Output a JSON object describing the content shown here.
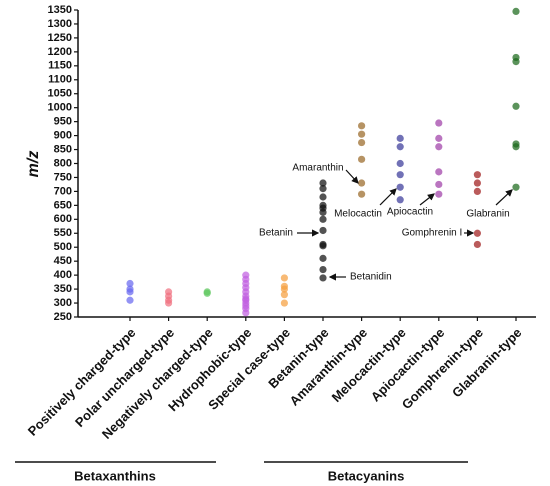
{
  "chart_data": {
    "type": "strip",
    "y_label": "m/z",
    "ylim": [
      250,
      1350
    ],
    "yticks": [
      250,
      300,
      350,
      400,
      450,
      500,
      550,
      600,
      650,
      700,
      750,
      800,
      850,
      900,
      950,
      1000,
      1050,
      1100,
      1150,
      1200,
      1250,
      1300,
      1350
    ],
    "categories": [
      "Positively charged-type",
      "Polar uncharged-type",
      "Negatively charged-type",
      "Hydrophobic-type",
      "Special case-type",
      "Betanin-type",
      "Amaranthin-type",
      "Melocactin-type",
      "Apiocactin-type",
      "Gomphrenin-type",
      "Glabranin-type"
    ],
    "colors": [
      "#6a6af0",
      "#f07080",
      "#60c860",
      "#c060e0",
      "#f5a040",
      "#111111",
      "#9a6a28",
      "#3a3a9a",
      "#a040a8",
      "#a01c1c",
      "#1c6a1c"
    ],
    "values": [
      [
        370,
        350,
        340,
        310
      ],
      [
        340,
        325,
        310,
        300
      ],
      [
        340,
        335
      ],
      [
        400,
        385,
        370,
        355,
        340,
        325,
        315,
        310,
        300,
        290,
        280,
        265
      ],
      [
        390,
        360,
        350,
        330,
        300
      ],
      [
        730,
        710,
        680,
        650,
        640,
        625,
        600,
        560,
        510,
        505,
        460,
        420,
        390
      ],
      [
        935,
        905,
        875,
        815,
        730,
        690
      ],
      [
        890,
        860,
        800,
        760,
        715,
        670
      ],
      [
        945,
        890,
        860,
        770,
        725,
        690
      ],
      [
        760,
        730,
        700,
        550,
        510
      ],
      [
        1345,
        1180,
        1165,
        1005,
        870,
        860,
        715
      ]
    ],
    "annotations": [
      "Amaranthin",
      "Betanin",
      "Betanidin",
      "Melocactin",
      "Apiocactin",
      "Gomphrenin I",
      "Glabranin"
    ],
    "groups": [
      "Betaxanthins",
      "Betacyanins"
    ]
  }
}
